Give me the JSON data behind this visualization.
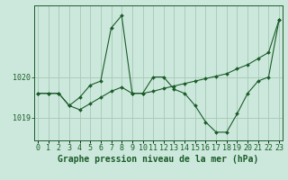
{
  "xlabel": "Graphe pression niveau de la mer (hPa)",
  "background_color": "#cce8dc",
  "grid_color": "#aaccbc",
  "line_color": "#1a5c28",
  "x_values": [
    0,
    1,
    2,
    3,
    4,
    5,
    6,
    7,
    8,
    9,
    10,
    11,
    12,
    13,
    14,
    15,
    16,
    17,
    18,
    19,
    20,
    21,
    22,
    23
  ],
  "series1": [
    1019.6,
    1019.6,
    1019.6,
    1019.3,
    1019.5,
    1019.8,
    1019.9,
    1021.2,
    1021.5,
    1019.6,
    1019.6,
    1020.0,
    1020.0,
    1019.7,
    1019.6,
    1019.3,
    1018.9,
    1018.65,
    1018.65,
    1019.1,
    1019.6,
    1019.9,
    1020.0,
    1021.4
  ],
  "series2": [
    1019.6,
    1019.6,
    1019.6,
    1019.3,
    1019.2,
    1019.35,
    1019.5,
    1019.65,
    1019.75,
    1019.6,
    1019.6,
    1019.65,
    1019.72,
    1019.78,
    1019.84,
    1019.9,
    1019.96,
    1020.02,
    1020.08,
    1020.2,
    1020.3,
    1020.45,
    1020.6,
    1021.4
  ],
  "ylim": [
    1018.45,
    1021.75
  ],
  "yticks": [
    1019.0,
    1020.0
  ],
  "xlim": [
    -0.3,
    23.3
  ],
  "tick_fontsize": 6,
  "label_fontsize": 7,
  "marker": "D",
  "marker_size": 2.0
}
